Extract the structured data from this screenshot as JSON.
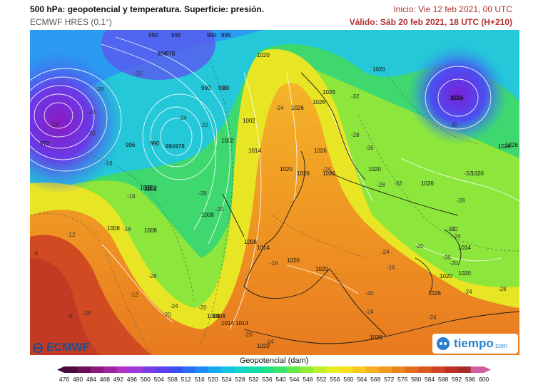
{
  "header": {
    "title": "500 hPa: geopotencial y temperatura. Superficie: presión.",
    "model": "ECMWF HRES (0.1°)",
    "init": "Inicio: Vie 12 feb 2021, 00 UTC",
    "valid": "Válido: Sáb 20 feb 2021, 18 UTC (H+210)"
  },
  "logos": {
    "left": "ECMWF",
    "right_main": "tiempo",
    "right_suffix": ".com"
  },
  "colorbar": {
    "label": "Geopotencial (dam)",
    "ticks": [
      "476",
      "480",
      "484",
      "488",
      "492",
      "496",
      "500",
      "504",
      "508",
      "512",
      "516",
      "520",
      "524",
      "528",
      "532",
      "536",
      "540",
      "544",
      "548",
      "552",
      "556",
      "560",
      "564",
      "568",
      "572",
      "576",
      "580",
      "584",
      "588",
      "592",
      "596",
      "600"
    ],
    "colors": [
      "#4a0a3a",
      "#6b0f5a",
      "#8a1a7a",
      "#a024a0",
      "#b030c8",
      "#9a3ad8",
      "#7a3ce4",
      "#5a40ee",
      "#3a4ef4",
      "#2a6cf8",
      "#1e8cf8",
      "#18aaf0",
      "#12c4e0",
      "#10d6c8",
      "#14dcaa",
      "#20e08a",
      "#3ae46a",
      "#62e84a",
      "#90ec34",
      "#c0ee28",
      "#e6ee20",
      "#f4e020",
      "#f6c820",
      "#f4b020",
      "#f09a20",
      "#ec8420",
      "#e46e20",
      "#dc5a22",
      "#d04424",
      "#c03026",
      "#a82a28",
      "#d060a0"
    ]
  },
  "map": {
    "pressure_labels": [
      {
        "t": "990"
      },
      {
        "t": "996"
      },
      {
        "t": "984"
      },
      {
        "t": "978"
      },
      {
        "t": "972"
      },
      {
        "t": "990"
      },
      {
        "t": "996"
      },
      {
        "t": "990"
      },
      {
        "t": "984978"
      },
      {
        "t": "990"
      },
      {
        "t": "996"
      },
      {
        "t": "1002"
      },
      {
        "t": "1002"
      },
      {
        "t": "1008"
      },
      {
        "t": "1008"
      },
      {
        "t": "1014"
      },
      {
        "t": "1020"
      },
      {
        "t": "1026"
      },
      {
        "t": "1026"
      },
      {
        "t": "1020"
      },
      {
        "t": "1008"
      },
      {
        "t": "1014"
      },
      {
        "t": "1026"
      },
      {
        "t": "1026"
      },
      {
        "t": "1020"
      },
      {
        "t": "1026"
      },
      {
        "t": "1026"
      },
      {
        "t": "1026"
      },
      {
        "t": "1020"
      },
      {
        "t": "1026"
      },
      {
        "t": "1014"
      },
      {
        "t": "1020"
      },
      {
        "t": "1026"
      },
      {
        "t": "1008"
      },
      {
        "t": "1014"
      },
      {
        "t": "1014"
      },
      {
        "t": "1020"
      },
      {
        "t": "1026"
      },
      {
        "t": "1020"
      },
      {
        "t": "1002"
      },
      {
        "t": "1002"
      },
      {
        "t": "1020"
      },
      {
        "t": "1020"
      },
      {
        "t": "990"
      },
      {
        "t": "1026"
      },
      {
        "t": "1026"
      },
      {
        "t": "1026"
      },
      {
        "t": "1020"
      },
      {
        "t": "1008"
      },
      {
        "t": "1002"
      },
      {
        "t": "1008"
      }
    ],
    "temperature_labels": [
      {
        "t": "-32"
      },
      {
        "t": "-28"
      },
      {
        "t": "-24"
      },
      {
        "t": "-28"
      },
      {
        "t": "-20"
      },
      {
        "t": "-16"
      },
      {
        "t": "-20"
      },
      {
        "t": "-24"
      },
      {
        "t": "-20"
      },
      {
        "t": "-28"
      },
      {
        "t": "-16"
      },
      {
        "t": "-28"
      },
      {
        "t": "-24"
      },
      {
        "t": "-20"
      },
      {
        "t": "-12"
      },
      {
        "t": "-16"
      },
      {
        "t": "-8"
      },
      {
        "t": "-12"
      },
      {
        "t": "-28"
      },
      {
        "t": "-8"
      },
      {
        "t": "-16"
      },
      {
        "t": "-24"
      },
      {
        "t": "-20"
      },
      {
        "t": "-24"
      },
      {
        "t": "-28"
      },
      {
        "t": "-32"
      },
      {
        "t": "-28"
      },
      {
        "t": "-32"
      },
      {
        "t": "-36"
      },
      {
        "t": "-40"
      },
      {
        "t": "-32"
      },
      {
        "t": "-28"
      },
      {
        "t": "-24"
      },
      {
        "t": "-20"
      },
      {
        "t": "-24"
      },
      {
        "t": "-28"
      },
      {
        "t": "-24"
      },
      {
        "t": "-24"
      },
      {
        "t": "-20"
      },
      {
        "t": "-16"
      },
      {
        "t": "-20"
      },
      {
        "t": "-24"
      },
      {
        "t": "-20"
      },
      {
        "t": "-20"
      },
      {
        "t": "-24"
      },
      {
        "t": "-32"
      },
      {
        "t": "-36"
      },
      {
        "t": "-32"
      }
    ]
  }
}
